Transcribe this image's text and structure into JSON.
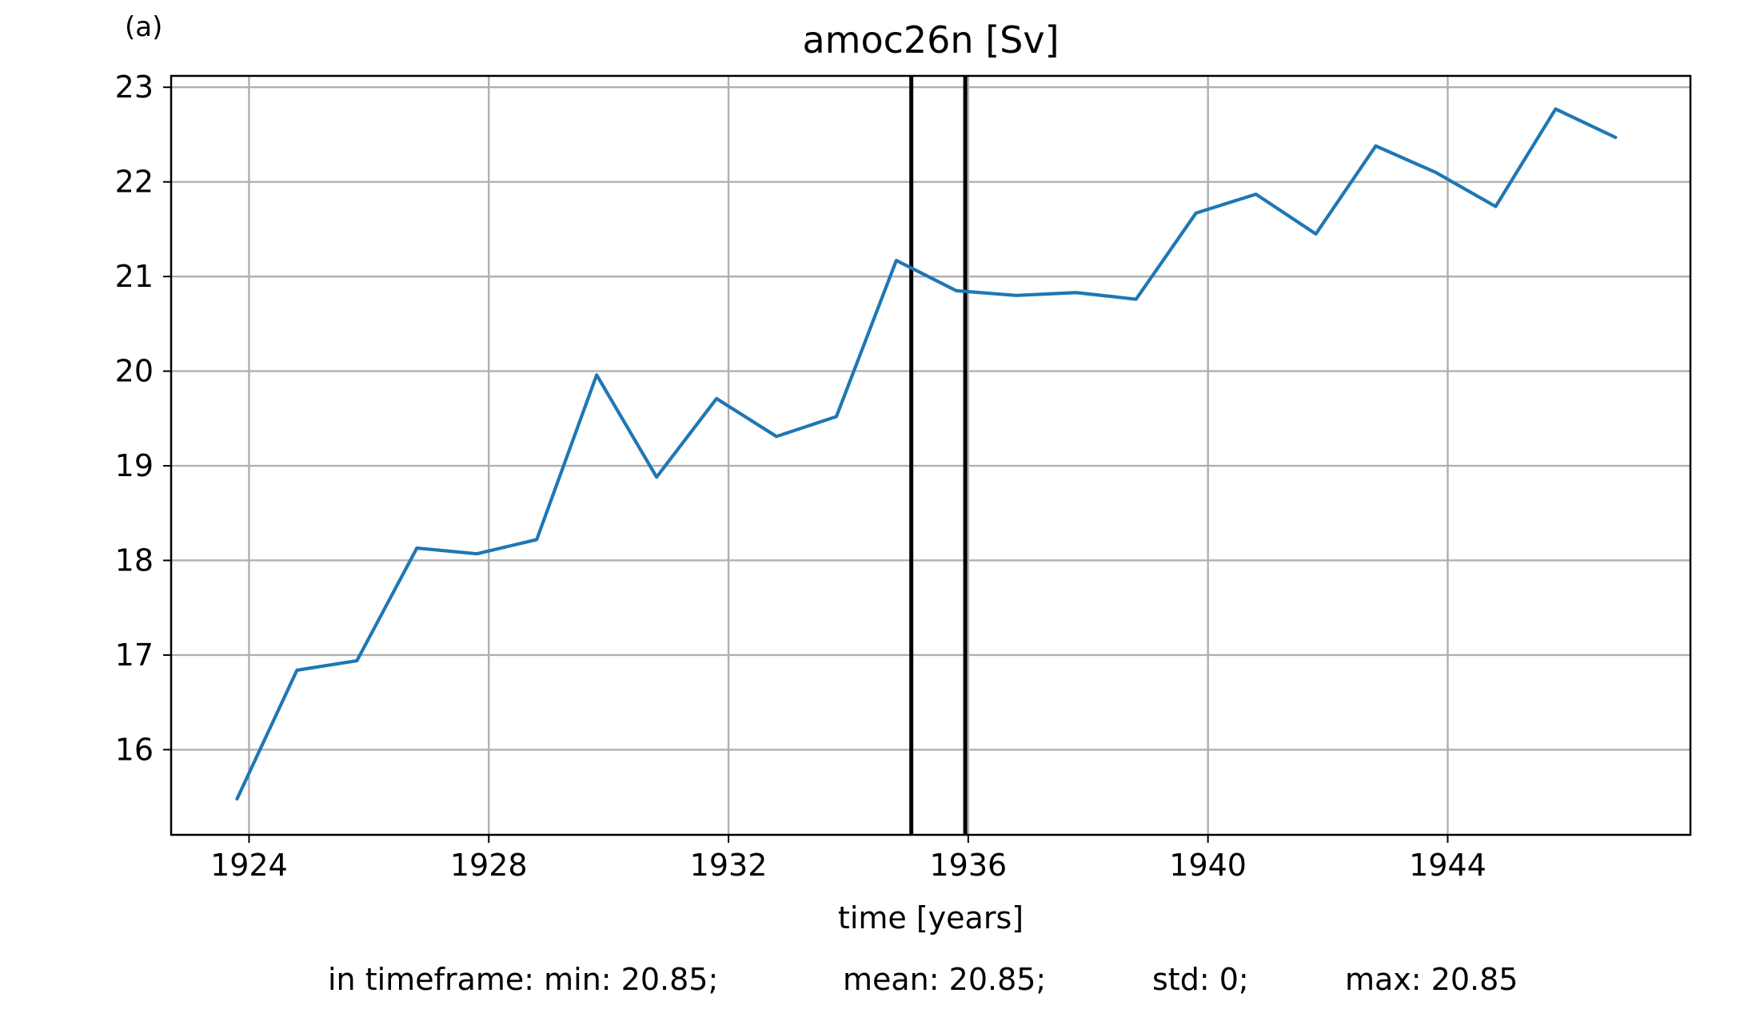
{
  "panel_label": "(a)",
  "chart_data": {
    "type": "line",
    "title": "amoc26n [Sv]",
    "xlabel": "time [years]",
    "ylabel": "",
    "xlim": [
      1922.7,
      1948.05
    ],
    "ylim": [
      15.1,
      23.12
    ],
    "xticks": [
      1924,
      1928,
      1932,
      1936,
      1940,
      1944
    ],
    "yticks": [
      16,
      17,
      18,
      19,
      20,
      21,
      22,
      23
    ],
    "grid": true,
    "series": [
      {
        "color": "#1f77b4",
        "x": [
          1923.8,
          1924.8,
          1925.8,
          1926.8,
          1927.8,
          1928.8,
          1929.8,
          1930.8,
          1931.8,
          1932.8,
          1933.8,
          1934.8,
          1935.8,
          1936.8,
          1937.8,
          1938.8,
          1939.8,
          1940.8,
          1941.8,
          1942.8,
          1943.8,
          1944.8,
          1945.8,
          1946.8
        ],
        "values": [
          15.48,
          16.84,
          16.94,
          18.13,
          18.07,
          18.22,
          19.96,
          18.88,
          19.71,
          19.31,
          19.52,
          21.17,
          20.85,
          20.8,
          20.83,
          20.76,
          21.67,
          21.87,
          21.45,
          22.38,
          22.1,
          21.74,
          22.77,
          22.47
        ]
      }
    ],
    "vlines": [
      {
        "x": 1935.05,
        "color": "#000000"
      },
      {
        "x": 1935.95,
        "color": "#000000"
      }
    ]
  },
  "stats": {
    "prefix": "in timeframe: min: 20.85;",
    "mean": "mean: 20.85;",
    "std": "std: 0;",
    "max": "max: 20.85"
  }
}
